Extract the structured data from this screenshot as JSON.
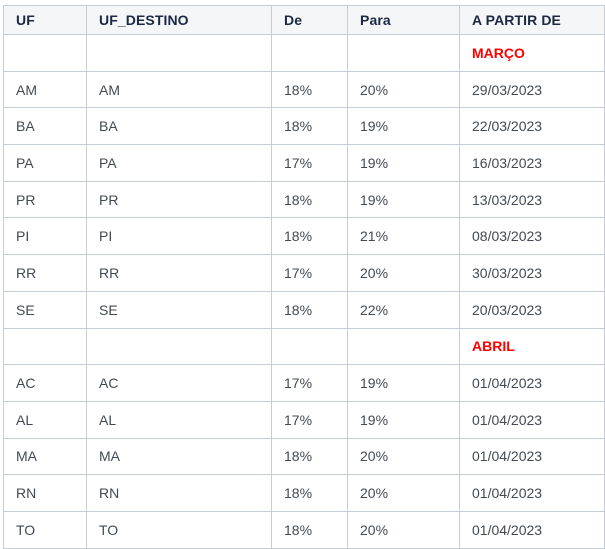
{
  "colors": {
    "header_text": "#1b2942",
    "header_background": "#f4f6f8",
    "body_text": "#424a53",
    "month_label_red": "#ff0000",
    "grid_border": "#c6ccd4"
  },
  "table": {
    "columns": [
      {
        "key": "uf",
        "label": "UF"
      },
      {
        "key": "uf_destino",
        "label": "UF_DESTINO"
      },
      {
        "key": "de",
        "label": "De"
      },
      {
        "key": "para",
        "label": "Para"
      },
      {
        "key": "a_partir_de",
        "label": "A PARTIR DE"
      }
    ],
    "rows": [
      {
        "uf": "",
        "uf_destino": "",
        "de": "",
        "para": "",
        "a_partir_de": "MARÇO",
        "month_row": true
      },
      {
        "uf": "AM",
        "uf_destino": "AM",
        "de": "18%",
        "para": "20%",
        "a_partir_de": "29/03/2023",
        "month_row": false
      },
      {
        "uf": "BA",
        "uf_destino": "BA",
        "de": "18%",
        "para": "19%",
        "a_partir_de": "22/03/2023",
        "month_row": false
      },
      {
        "uf": "PA",
        "uf_destino": "PA",
        "de": "17%",
        "para": "19%",
        "a_partir_de": "16/03/2023",
        "month_row": false
      },
      {
        "uf": "PR",
        "uf_destino": "PR",
        "de": "18%",
        "para": "19%",
        "a_partir_de": "13/03/2023",
        "month_row": false
      },
      {
        "uf": "PI",
        "uf_destino": "PI",
        "de": "18%",
        "para": "21%",
        "a_partir_de": "08/03/2023",
        "month_row": false
      },
      {
        "uf": "RR",
        "uf_destino": "RR",
        "de": "17%",
        "para": "20%",
        "a_partir_de": "30/03/2023",
        "month_row": false
      },
      {
        "uf": "SE",
        "uf_destino": "SE",
        "de": "18%",
        "para": "22%",
        "a_partir_de": "20/03/2023",
        "month_row": false
      },
      {
        "uf": "",
        "uf_destino": "",
        "de": "",
        "para": "",
        "a_partir_de": "ABRIL",
        "month_row": true
      },
      {
        "uf": "AC",
        "uf_destino": "AC",
        "de": "17%",
        "para": "19%",
        "a_partir_de": "01/04/2023",
        "month_row": false
      },
      {
        "uf": "AL",
        "uf_destino": "AL",
        "de": "17%",
        "para": "19%",
        "a_partir_de": "01/04/2023",
        "month_row": false
      },
      {
        "uf": "MA",
        "uf_destino": "MA",
        "de": "18%",
        "para": "20%",
        "a_partir_de": "01/04/2023",
        "month_row": false
      },
      {
        "uf": "RN",
        "uf_destino": "RN",
        "de": "18%",
        "para": "20%",
        "a_partir_de": "01/04/2023",
        "month_row": false
      },
      {
        "uf": "TO",
        "uf_destino": "TO",
        "de": "18%",
        "para": "20%",
        "a_partir_de": "01/04/2023",
        "month_row": false
      }
    ]
  }
}
